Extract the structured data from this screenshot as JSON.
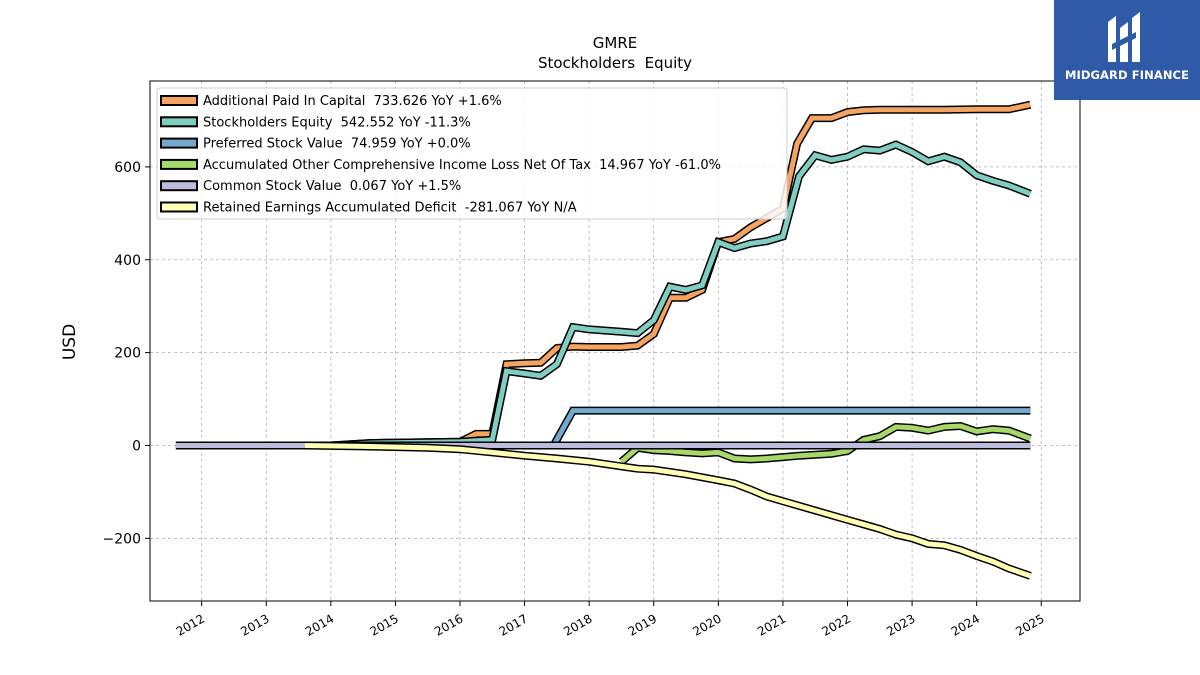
{
  "chart_data": {
    "type": "line",
    "title": "GMRE",
    "subtitle": "Stockholders  Equity",
    "ylabel": "USD",
    "xlabel": "",
    "xlim": [
      2011.2,
      2025.6
    ],
    "ylim": [
      -335,
      785
    ],
    "yticks": [
      -200,
      0,
      200,
      400,
      600
    ],
    "ytick_labels": [
      "−200",
      "0",
      "200",
      "400",
      "600"
    ],
    "xticks": [
      2012,
      2013,
      2014,
      2015,
      2016,
      2017,
      2018,
      2019,
      2020,
      2021,
      2022,
      2023,
      2024,
      2025
    ],
    "xtick_labels": [
      "2012",
      "2013",
      "2014",
      "2015",
      "2016",
      "2017",
      "2018",
      "2019",
      "2020",
      "2021",
      "2022",
      "2023",
      "2024",
      "2025"
    ],
    "grid": true,
    "legend_position": "top-left",
    "series": [
      {
        "name": "Additional Paid In Capital  733.626 YoY +1.6%",
        "color": "#f4a460",
        "x": [
          2014.0,
          2014.6,
          2015.5,
          2016.0,
          2016.25,
          2016.5,
          2016.72,
          2017.0,
          2017.25,
          2017.5,
          2017.75,
          2018.0,
          2018.5,
          2018.75,
          2019.0,
          2019.25,
          2019.5,
          2019.75,
          2020.0,
          2020.25,
          2020.5,
          2020.75,
          2021.0,
          2021.22,
          2021.45,
          2021.75,
          2022.0,
          2022.25,
          2022.5,
          2022.75,
          2023.0,
          2023.5,
          2024.0,
          2024.5,
          2024.83
        ],
        "y": [
          0,
          5,
          7,
          8,
          25,
          25,
          175,
          177,
          178,
          210,
          213,
          212,
          212,
          215,
          240,
          318,
          318,
          335,
          438,
          445,
          470,
          490,
          510,
          650,
          705,
          705,
          718,
          722,
          723,
          723,
          723,
          723,
          724,
          724,
          734
        ]
      },
      {
        "name": "Stockholders Equity  542.552 YoY -11.3%",
        "color": "#80cdc1",
        "x": [
          2014.0,
          2014.6,
          2015.5,
          2016.0,
          2016.25,
          2016.5,
          2016.72,
          2017.0,
          2017.25,
          2017.5,
          2017.75,
          2018.0,
          2018.5,
          2018.75,
          2019.0,
          2019.25,
          2019.5,
          2019.75,
          2020.0,
          2020.25,
          2020.5,
          2020.75,
          2021.0,
          2021.25,
          2021.5,
          2021.75,
          2022.0,
          2022.25,
          2022.5,
          2022.75,
          2023.0,
          2023.25,
          2023.5,
          2023.75,
          2024.0,
          2024.25,
          2024.5,
          2024.83
        ],
        "y": [
          0,
          5,
          7,
          8,
          10,
          12,
          160,
          155,
          150,
          175,
          255,
          250,
          245,
          242,
          270,
          342,
          335,
          345,
          438,
          425,
          435,
          440,
          450,
          580,
          625,
          615,
          622,
          638,
          635,
          648,
          632,
          612,
          622,
          610,
          582,
          570,
          560,
          542
        ]
      },
      {
        "name": "Preferred Stock Value  74.959 YoY +0.0%",
        "color": "#74a9cf",
        "x": [
          2017.45,
          2017.75,
          2018.0,
          2019.0,
          2020.0,
          2021.0,
          2022.0,
          2023.0,
          2024.0,
          2024.83
        ],
        "y": [
          0,
          75,
          75,
          75,
          75,
          75,
          75,
          75,
          75,
          75
        ]
      },
      {
        "name": "Accumulated Other Comprehensive Income Loss Net Of Tax  14.967 YoY -61.0%",
        "color": "#a6d96a",
        "x": [
          2018.5,
          2018.75,
          2019.0,
          2019.25,
          2019.5,
          2019.75,
          2020.0,
          2020.25,
          2020.5,
          2020.75,
          2021.0,
          2021.25,
          2021.5,
          2021.75,
          2022.0,
          2022.25,
          2022.5,
          2022.75,
          2023.0,
          2023.25,
          2023.5,
          2023.75,
          2024.0,
          2024.25,
          2024.5,
          2024.83
        ],
        "y": [
          -35,
          -5,
          -10,
          -12,
          -15,
          -17,
          -15,
          -28,
          -30,
          -28,
          -25,
          -22,
          -20,
          -18,
          -12,
          12,
          20,
          40,
          38,
          32,
          40,
          42,
          30,
          35,
          32,
          15
        ]
      },
      {
        "name": "Common Stock Value  0.067 YoY +1.5%",
        "color": "#bcbddc",
        "x": [
          2011.6,
          2013.6,
          2016.0,
          2018.0,
          2020.0,
          2022.0,
          2024.0,
          2024.83
        ],
        "y": [
          0,
          0,
          0,
          0,
          0,
          0,
          0,
          0
        ]
      },
      {
        "name": "Retained Earnings Accumulated Deficit  -281.067 YoY N/A",
        "color": "#ffffb3",
        "x": [
          2013.6,
          2014.5,
          2015.5,
          2016.0,
          2016.5,
          2017.0,
          2017.5,
          2018.0,
          2018.5,
          2018.75,
          2019.0,
          2019.5,
          2020.0,
          2020.25,
          2020.5,
          2020.75,
          2021.0,
          2021.5,
          2022.0,
          2022.25,
          2022.5,
          2022.75,
          2023.0,
          2023.25,
          2023.5,
          2023.75,
          2024.0,
          2024.25,
          2024.5,
          2024.83
        ],
        "y": [
          0,
          -2,
          -5,
          -8,
          -15,
          -22,
          -28,
          -35,
          -45,
          -50,
          -52,
          -62,
          -75,
          -82,
          -95,
          -110,
          -120,
          -140,
          -160,
          -170,
          -180,
          -192,
          -200,
          -212,
          -215,
          -225,
          -238,
          -250,
          -265,
          -281
        ]
      }
    ]
  },
  "logo": {
    "text": "MIDGARD FINANCE",
    "bg": "#2f5aa8"
  }
}
